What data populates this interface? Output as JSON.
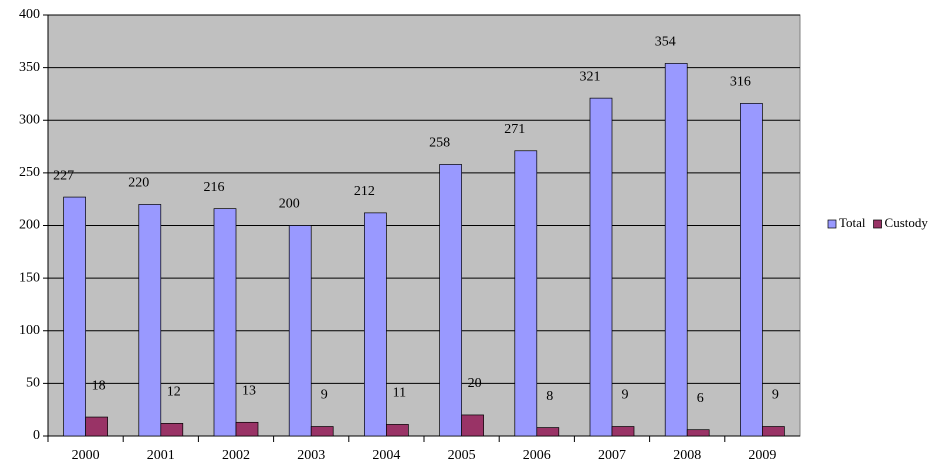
{
  "chart_data": {
    "type": "bar",
    "categories": [
      "2000",
      "2001",
      "2002",
      "2003",
      "2004",
      "2005",
      "2006",
      "2007",
      "2008",
      "2009"
    ],
    "series": [
      {
        "name": "Total",
        "color": "#9999ff",
        "values": [
          227,
          220,
          216,
          200,
          212,
          258,
          271,
          321,
          354,
          316
        ]
      },
      {
        "name": "Custody",
        "color": "#993366",
        "values": [
          18,
          12,
          13,
          9,
          11,
          20,
          8,
          9,
          6,
          9
        ]
      }
    ],
    "ylim": [
      0,
      400
    ],
    "yticks": [
      0,
      50,
      100,
      150,
      200,
      250,
      300,
      350,
      400
    ],
    "grid": true,
    "legend": "right",
    "data_labels": true
  }
}
